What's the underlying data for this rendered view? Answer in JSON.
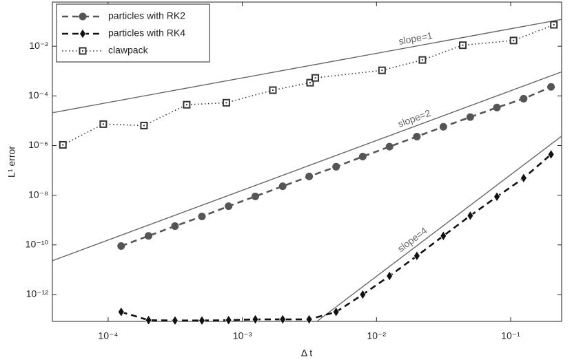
{
  "chart_data": {
    "type": "line",
    "log_x": true,
    "log_y": true,
    "xlabel": "Δ t",
    "ylabel": "L¹ error",
    "xlim": [
      3.84e-05,
      0.24
    ],
    "ylim": [
      8.3e-14,
      0.6
    ],
    "xticks": [
      {
        "value": 0.0001,
        "label": "10⁻⁴"
      },
      {
        "value": 0.001,
        "label": "10⁻³"
      },
      {
        "value": 0.01,
        "label": "10⁻²"
      },
      {
        "value": 0.1,
        "label": "10⁻¹"
      }
    ],
    "yticks": [
      {
        "value": 1e-12,
        "label": "10⁻¹²"
      },
      {
        "value": 1e-10,
        "label": "10⁻¹⁰"
      },
      {
        "value": 1e-08,
        "label": "10⁻⁸"
      },
      {
        "value": 1e-06,
        "label": "10⁻⁶"
      },
      {
        "value": 0.0001,
        "label": "10⁻⁴"
      },
      {
        "value": 0.01,
        "label": "10⁻²"
      }
    ],
    "legend": "upper left",
    "series": [
      {
        "name": "particles with RK2",
        "color": "#555555",
        "marker": "circle",
        "linestyle": "dashed",
        "x": [
          0.000125,
          0.0002,
          0.000315,
          0.0005,
          0.00079,
          0.00125,
          0.002,
          0.00315,
          0.005,
          0.0079,
          0.0125,
          0.02,
          0.0315,
          0.05,
          0.079,
          0.125,
          0.2
        ],
        "values": [
          9e-11,
          2.3e-10,
          5.7e-10,
          1.4e-09,
          3.6e-09,
          9e-09,
          2.3e-08,
          5.7e-08,
          1.4e-07,
          3.6e-07,
          9e-07,
          2.3e-06,
          5.7e-06,
          1.4e-05,
          3.4e-05,
          7.7e-05,
          0.00023
        ]
      },
      {
        "name": "particles with RK4",
        "color": "#111111",
        "marker": "diamond",
        "linestyle": "dashed",
        "x": [
          0.000125,
          0.0002,
          0.000315,
          0.0005,
          0.00079,
          0.00125,
          0.002,
          0.00315,
          0.005,
          0.0079,
          0.0125,
          0.02,
          0.0315,
          0.05,
          0.079,
          0.125,
          0.2
        ],
        "values": [
          2e-13,
          9.3e-14,
          9e-14,
          9e-14,
          9.3e-14,
          1e-13,
          1e-13,
          1e-13,
          2e-13,
          1e-12,
          5.6e-12,
          3.6e-11,
          2.3e-10,
          1.5e-09,
          8.7e-09,
          4.9e-08,
          4.4e-07
        ]
      },
      {
        "name": "clawpack",
        "color": "#333333",
        "marker": "square",
        "linestyle": "dotted",
        "x": [
          4.6e-05,
          9.2e-05,
          0.000185,
          0.000385,
          0.00076,
          0.00169,
          0.0032,
          0.0035,
          0.011,
          0.022,
          0.044,
          0.105,
          0.21
        ],
        "values": [
          1.07e-06,
          7.3e-06,
          6.4e-06,
          4.4e-05,
          5.3e-05,
          0.00017,
          0.00034,
          0.00053,
          0.00107,
          0.0028,
          0.011,
          0.017,
          0.073
        ]
      }
    ],
    "reference_lines": [
      {
        "label": "slope=1",
        "color": "#666666",
        "x": [
          3.84e-05,
          0.24
        ],
        "values": [
          2.1e-05,
          0.12
        ]
      },
      {
        "label": "slope=2",
        "color": "#666666",
        "x": [
          3.84e-05,
          0.24
        ],
        "values": [
          2.3e-11,
          0.00093
        ]
      },
      {
        "label": "slope=4",
        "color": "#666666",
        "x": [
          0.0036,
          0.24
        ],
        "values": [
          8.3e-14,
          2.4e-06
        ]
      }
    ]
  }
}
